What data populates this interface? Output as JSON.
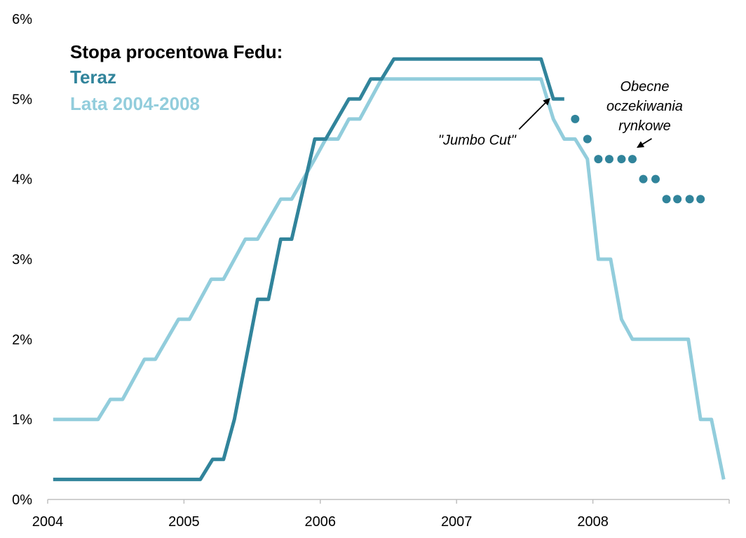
{
  "chart_data": {
    "type": "line",
    "title": "Stopa procentowa Fedu:",
    "xlabel": "",
    "ylabel": "",
    "xlim": [
      2004.0,
      2009.0
    ],
    "ylim": [
      0,
      6
    ],
    "x_ticks": [
      {
        "value": 2004,
        "label": "2004"
      },
      {
        "value": 2005,
        "label": "2005"
      },
      {
        "value": 2006,
        "label": "2006"
      },
      {
        "value": 2007,
        "label": "2007"
      },
      {
        "value": 2008,
        "label": "2008"
      }
    ],
    "y_ticks": [
      {
        "value": 0,
        "label": "0%"
      },
      {
        "value": 1,
        "label": "1%"
      },
      {
        "value": 2,
        "label": "2%"
      },
      {
        "value": 3,
        "label": "3%"
      },
      {
        "value": 4,
        "label": "4%"
      },
      {
        "value": 5,
        "label": "5%"
      },
      {
        "value": 6,
        "label": "6%"
      }
    ],
    "grid": false,
    "legend_position": "top-left",
    "series": [
      {
        "name": "Lata 2004-2008",
        "color": "#92cddc",
        "style": "line",
        "points": [
          [
            2004.04,
            1.0
          ],
          [
            2004.37,
            1.0
          ],
          [
            2004.46,
            1.25
          ],
          [
            2004.55,
            1.25
          ],
          [
            2004.71,
            1.75
          ],
          [
            2004.79,
            1.75
          ],
          [
            2004.96,
            2.25
          ],
          [
            2005.04,
            2.25
          ],
          [
            2005.2,
            2.75
          ],
          [
            2005.29,
            2.75
          ],
          [
            2005.45,
            3.25
          ],
          [
            2005.54,
            3.25
          ],
          [
            2005.71,
            3.75
          ],
          [
            2005.79,
            3.75
          ],
          [
            2005.96,
            4.25
          ],
          [
            2006.04,
            4.5
          ],
          [
            2006.13,
            4.5
          ],
          [
            2006.21,
            4.75
          ],
          [
            2006.29,
            4.75
          ],
          [
            2006.45,
            5.25
          ],
          [
            2007.62,
            5.25
          ],
          [
            2007.71,
            4.75
          ],
          [
            2007.79,
            4.5
          ],
          [
            2007.87,
            4.5
          ],
          [
            2007.96,
            4.25
          ],
          [
            2008.04,
            3.0
          ],
          [
            2008.13,
            3.0
          ],
          [
            2008.21,
            2.25
          ],
          [
            2008.29,
            2.0
          ],
          [
            2008.7,
            2.0
          ],
          [
            2008.79,
            1.0
          ],
          [
            2008.87,
            1.0
          ],
          [
            2008.96,
            0.25
          ]
        ]
      },
      {
        "name": "Teraz",
        "color": "#31849b",
        "style": "line",
        "points": [
          [
            2004.04,
            0.25
          ],
          [
            2005.12,
            0.25
          ],
          [
            2005.21,
            0.5
          ],
          [
            2005.29,
            0.5
          ],
          [
            2005.37,
            1.0
          ],
          [
            2005.54,
            2.5
          ],
          [
            2005.62,
            2.5
          ],
          [
            2005.71,
            3.25
          ],
          [
            2005.79,
            3.25
          ],
          [
            2005.96,
            4.5
          ],
          [
            2006.04,
            4.5
          ],
          [
            2006.21,
            5.0
          ],
          [
            2006.29,
            5.0
          ],
          [
            2006.37,
            5.25
          ],
          [
            2006.45,
            5.25
          ],
          [
            2006.54,
            5.5
          ],
          [
            2007.62,
            5.5
          ],
          [
            2007.71,
            5.0
          ],
          [
            2007.79,
            5.0
          ]
        ]
      },
      {
        "name": "Obecne oczekiwania rynkowe",
        "color": "#31849b",
        "style": "dots",
        "points": [
          [
            2007.87,
            4.75
          ],
          [
            2007.96,
            4.5
          ],
          [
            2008.04,
            4.25
          ],
          [
            2008.12,
            4.25
          ],
          [
            2008.21,
            4.25
          ],
          [
            2008.29,
            4.25
          ],
          [
            2008.37,
            4.0
          ],
          [
            2008.46,
            4.0
          ],
          [
            2008.54,
            3.75
          ],
          [
            2008.62,
            3.75
          ],
          [
            2008.71,
            3.75
          ],
          [
            2008.79,
            3.75
          ]
        ]
      }
    ],
    "legend": {
      "title": "Stopa procentowa Fedu:",
      "entries": [
        {
          "label": "Teraz",
          "color": "#31849b"
        },
        {
          "label": "Lata 2004-2008",
          "color": "#92cddc"
        }
      ]
    },
    "annotations": [
      {
        "name": "jumbo-cut",
        "lines": [
          "\"Jumbo Cut\""
        ],
        "target": [
          2007.68,
          5.0
        ],
        "text_at": [
          2007.15,
          4.43
        ]
      },
      {
        "name": "market-expectations",
        "lines": [
          "Obecne",
          "oczekiwania",
          "rynkowe"
        ],
        "target": [
          2008.33,
          4.4
        ],
        "text_at": [
          2008.38,
          5.1
        ]
      }
    ]
  }
}
